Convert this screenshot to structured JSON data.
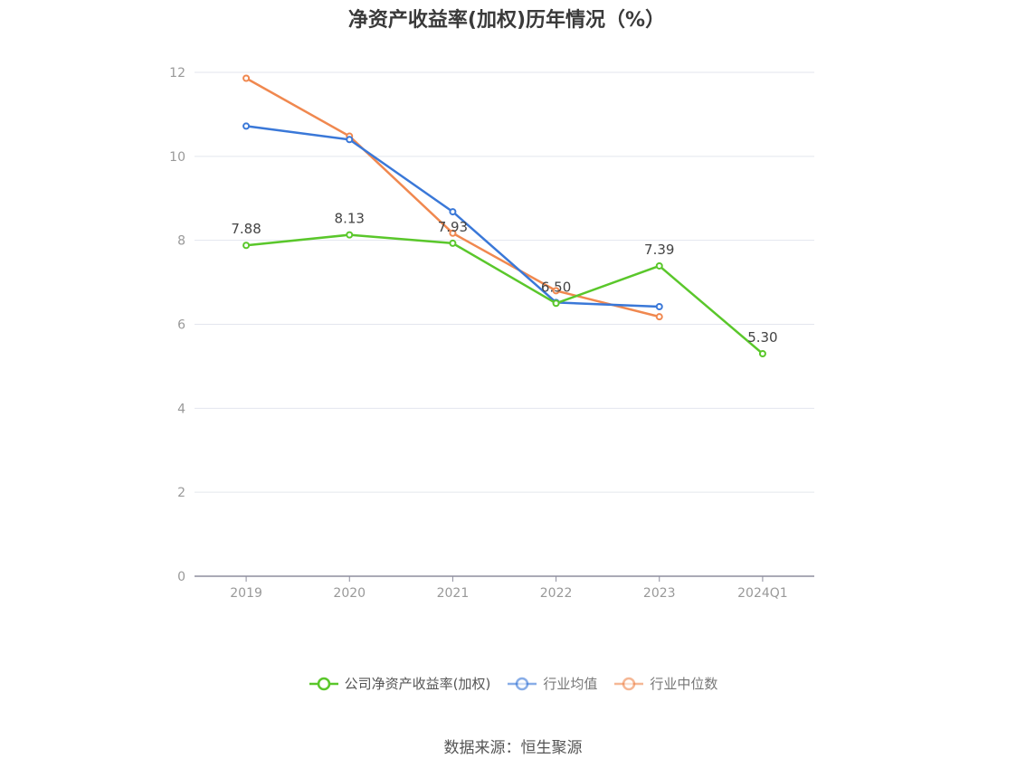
{
  "title": "净资产收益率(加权)历年情况（%）",
  "source": "数据来源：恒生聚源",
  "chart_data": {
    "type": "line",
    "title": "净资产收益率(加权)历年情况（%）",
    "categories": [
      "2019",
      "2020",
      "2021",
      "2022",
      "2023",
      "2024Q1"
    ],
    "ylim": [
      0,
      12
    ],
    "yticks": [
      0,
      2,
      4,
      6,
      8,
      10,
      12
    ],
    "grid": true,
    "legend_position": "bottom",
    "series": [
      {
        "name": "公司净资产收益率(加权)",
        "color": "#5ac72b",
        "values": [
          7.88,
          8.13,
          7.93,
          6.5,
          7.39,
          5.3
        ],
        "labels": [
          "7.88",
          "8.13",
          "7.93",
          "6.50",
          "7.39",
          "5.30"
        ]
      },
      {
        "name": "行业均值",
        "color": "#3a78d8",
        "values": [
          10.72,
          10.4,
          8.68,
          6.52,
          6.42,
          null
        ]
      },
      {
        "name": "行业中位数",
        "color": "#f0884f",
        "values": [
          11.86,
          10.48,
          8.17,
          6.8,
          6.18,
          null
        ]
      }
    ]
  }
}
